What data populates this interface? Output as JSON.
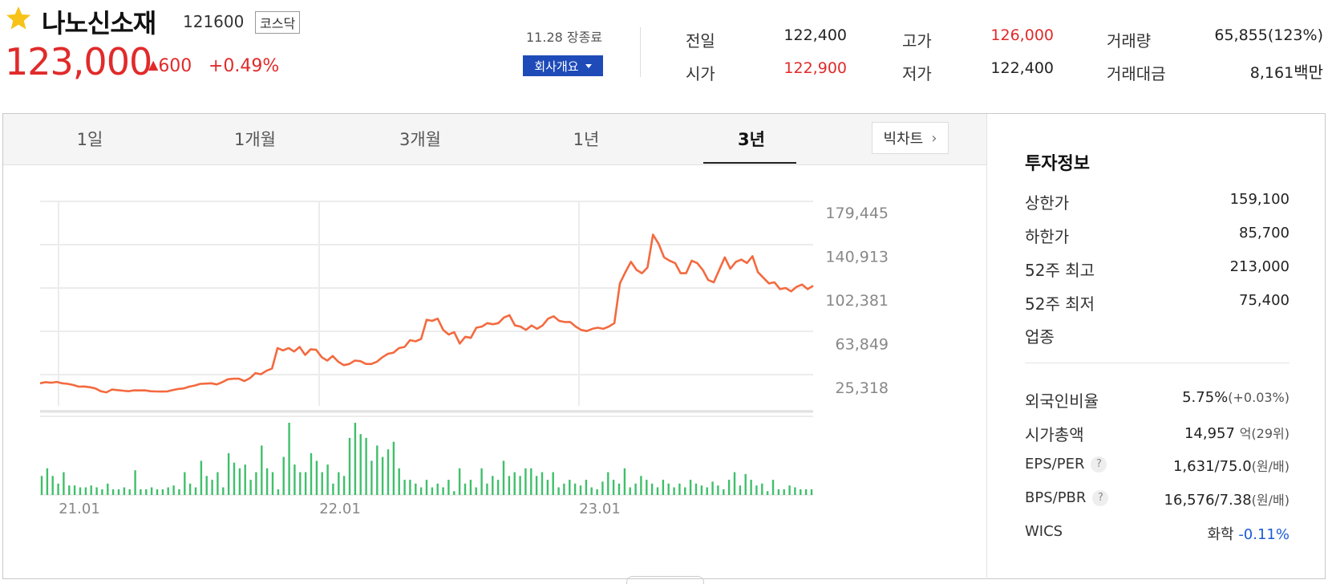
{
  "header": {
    "name": "나노신소재",
    "code": "121600",
    "market": "코스닥",
    "price": "123,000",
    "change": "600",
    "change_pct": "+0.49%",
    "date": "11.28 장종료",
    "company_btn": "회사개요",
    "colors": {
      "up": "#e12a2a",
      "down": "#1c5bd8",
      "button": "#1e4bb8"
    }
  },
  "quotes": {
    "prev_label": "전일",
    "prev_value": "122,400",
    "open_label": "시가",
    "open_value": "122,900",
    "high_label": "고가",
    "high_value": "126,000",
    "low_label": "저가",
    "low_value": "122,400",
    "volume_label": "거래량",
    "volume_value": "65,855(123%)",
    "amount_label": "거래대금",
    "amount_value": "8,161",
    "amount_unit": "백만"
  },
  "tabs": [
    "1일",
    "1개월",
    "3개월",
    "1년",
    "3년"
  ],
  "active_tab": "3년",
  "big_chart_btn": "빅차트",
  "invest": {
    "title": "투자정보",
    "upper_label": "상한가",
    "upper_value": "159,100",
    "lower_label": "하한가",
    "lower_value": "85,700",
    "high52_label": "52주 최고",
    "high52_value": "213,000",
    "low52_label": "52주 최저",
    "low52_value": "75,400",
    "sector_label": "업종",
    "foreign_label": "외국인비율",
    "foreign_value": "5.75%",
    "foreign_change": "(+0.03%)",
    "cap_label": "시가총액",
    "cap_value": "14,957",
    "cap_unit": "억",
    "cap_rank": "(29위)",
    "eps_label": "EPS/PER",
    "eps_value": "1,631/75.0",
    "eps_unit": "(원/배)",
    "bps_label": "BPS/PBR",
    "bps_value": "16,576/7.38",
    "bps_unit": "(원/배)",
    "wics_label": "WICS",
    "wics_name": "화학",
    "wics_change": "-0.11%"
  },
  "chart_data": {
    "type": "line",
    "y_ticks": [
      "179,445",
      "140,913",
      "102,381",
      "63,849",
      "25,318"
    ],
    "ylim": [
      25318,
      179445
    ],
    "x_ticks": [
      "21.01",
      "22.01",
      "23.01"
    ],
    "line_color": "#f36a3f",
    "volume_color": "#3fbf6a",
    "price_series": [
      29000,
      30000,
      29500,
      30200,
      29000,
      28500,
      27500,
      26000,
      26200,
      25500,
      24500,
      22000,
      21000,
      23500,
      23000,
      22500,
      22000,
      22800,
      22700,
      22800,
      22000,
      21800,
      21700,
      21800,
      23000,
      24000,
      24500,
      26000,
      27000,
      28500,
      28700,
      29000,
      28000,
      30000,
      32500,
      33000,
      33000,
      31000,
      33500,
      38000,
      37000,
      40000,
      42000,
      60000,
      58000,
      60000,
      57000,
      61000,
      54000,
      59000,
      58500,
      52000,
      49000,
      53000,
      48000,
      45000,
      46000,
      49000,
      48500,
      46000,
      46000,
      48000,
      52000,
      55000,
      56000,
      60000,
      61000,
      67000,
      66000,
      68000,
      85000,
      84000,
      86000,
      76000,
      72000,
      74000,
      64000,
      70000,
      69000,
      78000,
      79000,
      82000,
      81000,
      82000,
      87000,
      89000,
      80000,
      79000,
      76000,
      80000,
      77000,
      80000,
      86000,
      88000,
      84000,
      83000,
      83000,
      79000,
      76000,
      75000,
      77000,
      78000,
      77000,
      79000,
      82000,
      117000,
      127000,
      136000,
      129000,
      126000,
      131000,
      160000,
      152000,
      140000,
      137000,
      135000,
      126000,
      126000,
      137000,
      135000,
      129000,
      120000,
      118000,
      129000,
      140000,
      130000,
      136000,
      138000,
      135000,
      141000,
      127000,
      122000,
      117000,
      118000,
      112000,
      113000,
      110000,
      114000,
      116000,
      112000,
      115000
    ],
    "volume_series": [
      10,
      14,
      10,
      6,
      12,
      5,
      5,
      4,
      4,
      5,
      4,
      3,
      6,
      3,
      3,
      4,
      3,
      13,
      3,
      3,
      4,
      3,
      3,
      4,
      5,
      3,
      12,
      6,
      4,
      18,
      10,
      8,
      12,
      4,
      22,
      17,
      14,
      16,
      8,
      12,
      26,
      14,
      12,
      3,
      20,
      38,
      16,
      12,
      12,
      22,
      18,
      12,
      16,
      6,
      12,
      10,
      30,
      38,
      32,
      30,
      18,
      26,
      20,
      24,
      28,
      14,
      8,
      8,
      6,
      4,
      8,
      4,
      6,
      4,
      8,
      2,
      14,
      6,
      8,
      4,
      14,
      6,
      10,
      8,
      18,
      10,
      12,
      10,
      14,
      14,
      10,
      12,
      8,
      12,
      4,
      6,
      8,
      6,
      5,
      8,
      4,
      3,
      7,
      12,
      8,
      6,
      14,
      4,
      6,
      10,
      8,
      6,
      4,
      8,
      6,
      4,
      6,
      4,
      8,
      6,
      5,
      4,
      7,
      5,
      3,
      8,
      12,
      5,
      11,
      8,
      5,
      6,
      2,
      8,
      3,
      3,
      5,
      4,
      3,
      3,
      3
    ]
  }
}
